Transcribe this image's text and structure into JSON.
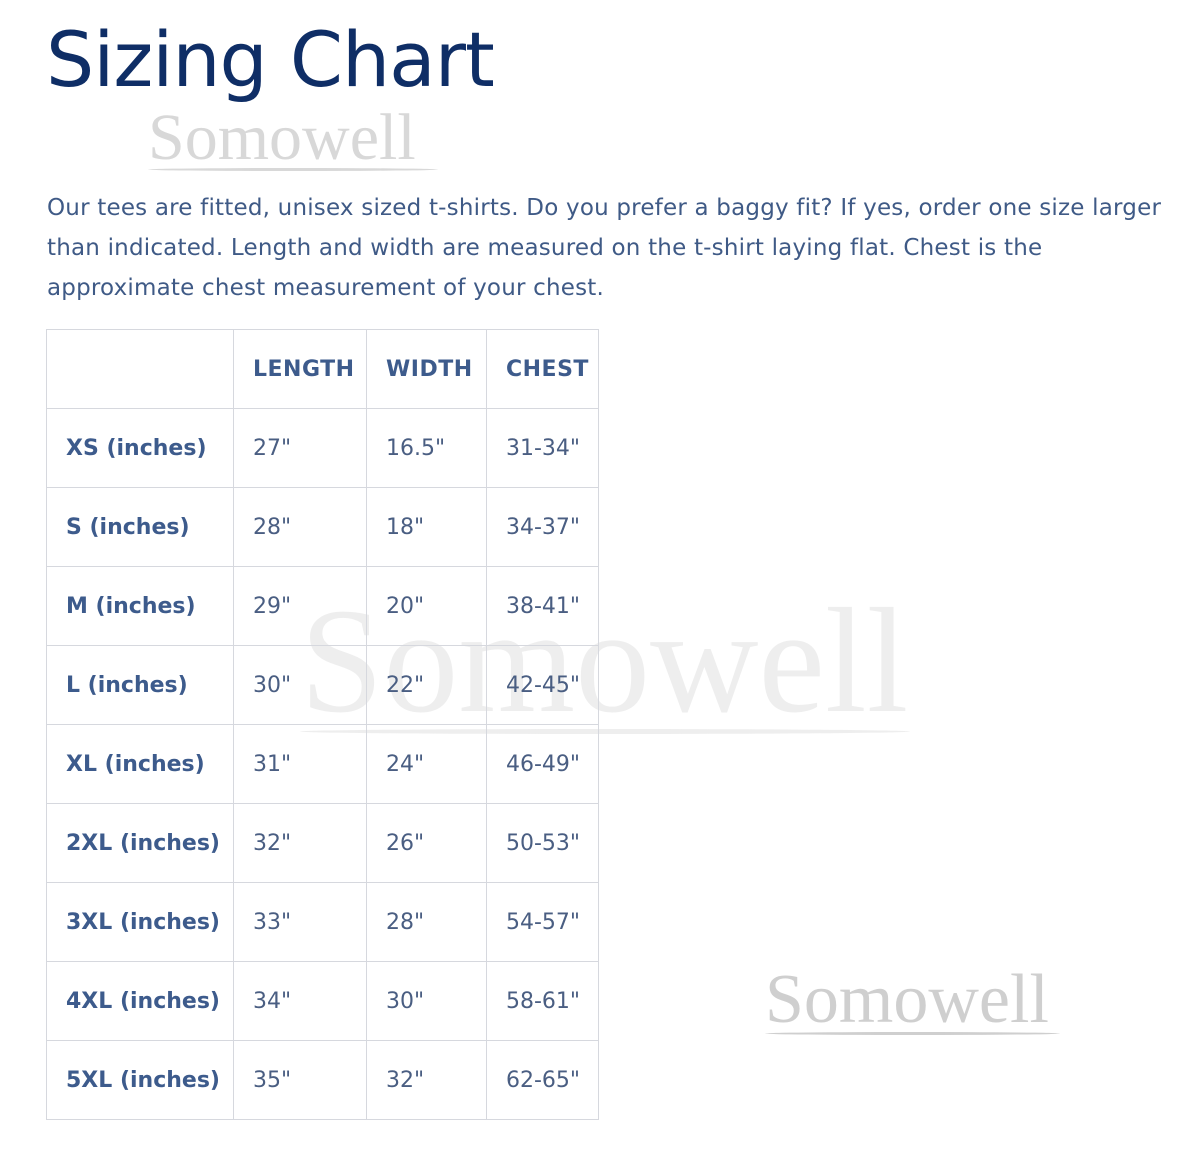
{
  "title": "Sizing Chart",
  "watermark": "Somowell",
  "intro": "Our tees are fitted, unisex sized t-shirts. Do you prefer a baggy fit? If yes, order one size larger than indicated. Length and width are measured on the t-shirt laying flat. Chest is the approximate chest measurement of your chest.",
  "table": {
    "headers": [
      "",
      "LENGTH",
      "WIDTH",
      "CHEST"
    ],
    "rows": [
      [
        "XS (inches)",
        "27\"",
        "16.5\"",
        "31-34\""
      ],
      [
        "S (inches)",
        "28\"",
        "18\"",
        "34-37\""
      ],
      [
        "M (inches)",
        "29\"",
        "20\"",
        "38-41\""
      ],
      [
        "L (inches)",
        "30\"",
        "22\"",
        "42-45\""
      ],
      [
        "XL (inches)",
        "31\"",
        "24\"",
        "46-49\""
      ],
      [
        "2XL (inches)",
        "32\"",
        "26\"",
        "50-53\""
      ],
      [
        "3XL (inches)",
        "33\"",
        "28\"",
        "54-57\""
      ],
      [
        "4XL (inches)",
        "34\"",
        "30\"",
        "58-61\""
      ],
      [
        "5XL (inches)",
        "35\"",
        "32\"",
        "62-65\""
      ]
    ]
  },
  "colors": {
    "title": "#0f2e66",
    "text": "#3f5a86",
    "border": "#d6d8de"
  }
}
